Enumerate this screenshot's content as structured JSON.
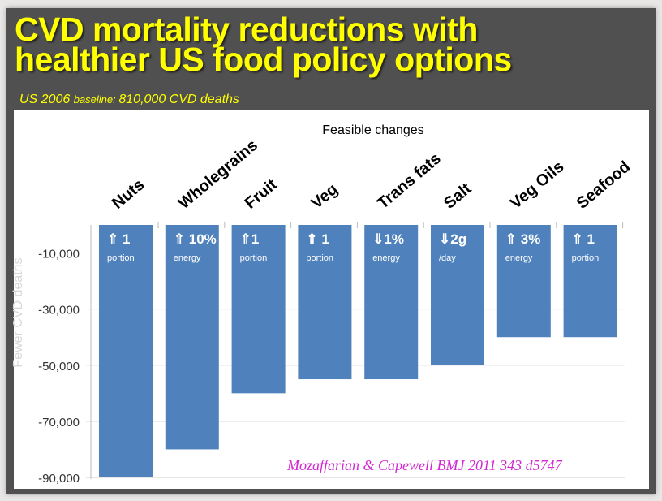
{
  "title_line1": "CVD mortality reductions with",
  "title_line2": "healthier US food policy options",
  "subtitle": {
    "a": "US 2006 ",
    "b": "baseline: ",
    "c": "810,000 ",
    "d": "CVD deaths"
  },
  "citation": "Mozaffarian & Capewell  BMJ 2011 343 d5747",
  "chart_data": {
    "type": "bar",
    "title": "Feasible changes",
    "ylabel": "Fewer CVD  deaths",
    "xlabel": "",
    "categories": [
      "Nuts",
      "Wholegrains",
      "Fruit",
      "Veg",
      "Trans fats",
      "Salt",
      "Veg Oils",
      "Seafood"
    ],
    "values": [
      -90000,
      -80000,
      -60000,
      -55000,
      -55000,
      -50000,
      -40000,
      -40000
    ],
    "bar_labels": [
      {
        "main": "⇑ 1",
        "sub": "portion"
      },
      {
        "main": "⇑ 10%",
        "sub": "energy"
      },
      {
        "main": "⇑1",
        "sub": "portion"
      },
      {
        "main": "⇑ 1",
        "sub": "portion"
      },
      {
        "main": "⇓1%",
        "sub": "energy"
      },
      {
        "main": "⇓2g",
        "sub": "/day"
      },
      {
        "main": "⇑ 3%",
        "sub": "energy"
      },
      {
        "main": "⇑ 1",
        "sub": "portion"
      }
    ],
    "yticks": [
      -10000,
      -30000,
      -50000,
      -70000,
      -90000
    ],
    "ytick_labels": [
      "-10,000",
      "-30,000",
      "-50,000",
      "-70,000",
      "-90,000"
    ],
    "ylim": [
      -90000,
      0
    ],
    "grid": true,
    "bar_color": "#4f81bd"
  }
}
